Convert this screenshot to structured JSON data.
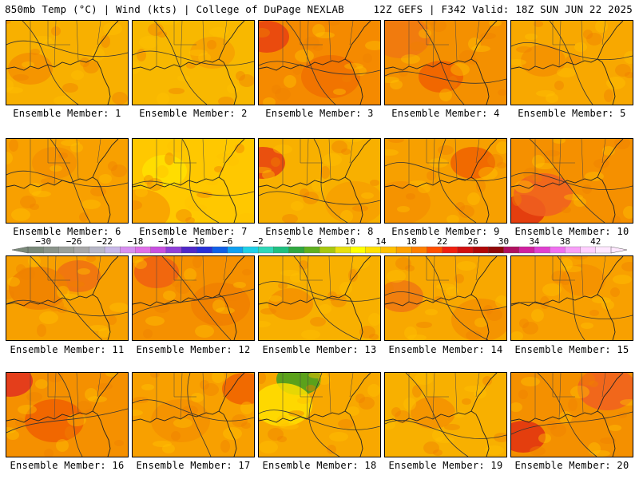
{
  "header": {
    "left": "850mb Temp (°C) | Wind (kts) | College of DuPage NEXLAB",
    "right": "12Z GEFS | F342 Valid: 18Z SUN JUN 22 2025"
  },
  "colorbar": {
    "ticks": [
      "−30",
      "−26",
      "−22",
      "−18",
      "−14",
      "−10",
      "−6",
      "−2",
      "2",
      "6",
      "10",
      "14",
      "18",
      "22",
      "26",
      "30",
      "34",
      "38",
      "42"
    ],
    "range": [
      -32,
      44
    ],
    "step": 2,
    "colors": [
      "#7a8a7a",
      "#8a948a",
      "#9aa09a",
      "#a8a8a8",
      "#b8b8c8",
      "#c8b8e8",
      "#d890f0",
      "#e070e8",
      "#c850e0",
      "#9040d8",
      "#5028c8",
      "#2830d8",
      "#1060e8",
      "#10a0f0",
      "#20d0e8",
      "#30d8b8",
      "#20c080",
      "#30a840",
      "#60b020",
      "#a8c810",
      "#e8e010",
      "#ffff00",
      "#ffe000",
      "#ffc000",
      "#ffa000",
      "#ff8000",
      "#ff5000",
      "#f02010",
      "#d01010",
      "#b00808",
      "#900808",
      "#b01060",
      "#d020a0",
      "#e040d0",
      "#f070f0",
      "#f8a0f8",
      "#ffd0ff",
      "#ffe8ff"
    ]
  },
  "members": [
    {
      "label": "Ensemble Member: 1"
    },
    {
      "label": "Ensemble Member: 2"
    },
    {
      "label": "Ensemble Member: 3"
    },
    {
      "label": "Ensemble Member: 4"
    },
    {
      "label": "Ensemble Member: 5"
    },
    {
      "label": "Ensemble Member: 6"
    },
    {
      "label": "Ensemble Member: 7"
    },
    {
      "label": "Ensemble Member: 8"
    },
    {
      "label": "Ensemble Member: 9"
    },
    {
      "label": "Ensemble Member: 10"
    },
    {
      "label": "Ensemble Member: 11"
    },
    {
      "label": "Ensemble Member: 12"
    },
    {
      "label": "Ensemble Member: 13"
    },
    {
      "label": "Ensemble Member: 14"
    },
    {
      "label": "Ensemble Member: 15"
    },
    {
      "label": "Ensemble Member: 16"
    },
    {
      "label": "Ensemble Member: 17"
    },
    {
      "label": "Ensemble Member: 18"
    },
    {
      "label": "Ensemble Member: 19"
    },
    {
      "label": "Ensemble Member: 20"
    }
  ]
}
